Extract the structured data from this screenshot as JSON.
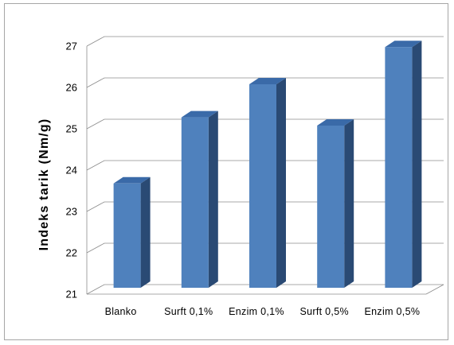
{
  "chart_data": {
    "type": "bar",
    "title": "",
    "xlabel": "",
    "ylabel": "Indeks tarik  (Nm/g)",
    "categories": [
      "Blanko",
      "Surft 0,1%",
      "Enzim 0,1%",
      "Surft  0,5%",
      "Enzim 0,5%"
    ],
    "values": [
      23.6,
      25.2,
      26.0,
      25.0,
      26.9
    ],
    "ylim": [
      21,
      27
    ],
    "yticks": [
      21,
      22,
      23,
      24,
      25,
      26,
      27
    ],
    "grid": true,
    "legend": "none",
    "style": "3d-column",
    "colors": {
      "bar_front": "#4f81bd",
      "bar_top": "#3a6aa8",
      "bar_side": "#2a4a74",
      "grid": "#8c8c8c",
      "frame": "#a6a6a6"
    }
  }
}
